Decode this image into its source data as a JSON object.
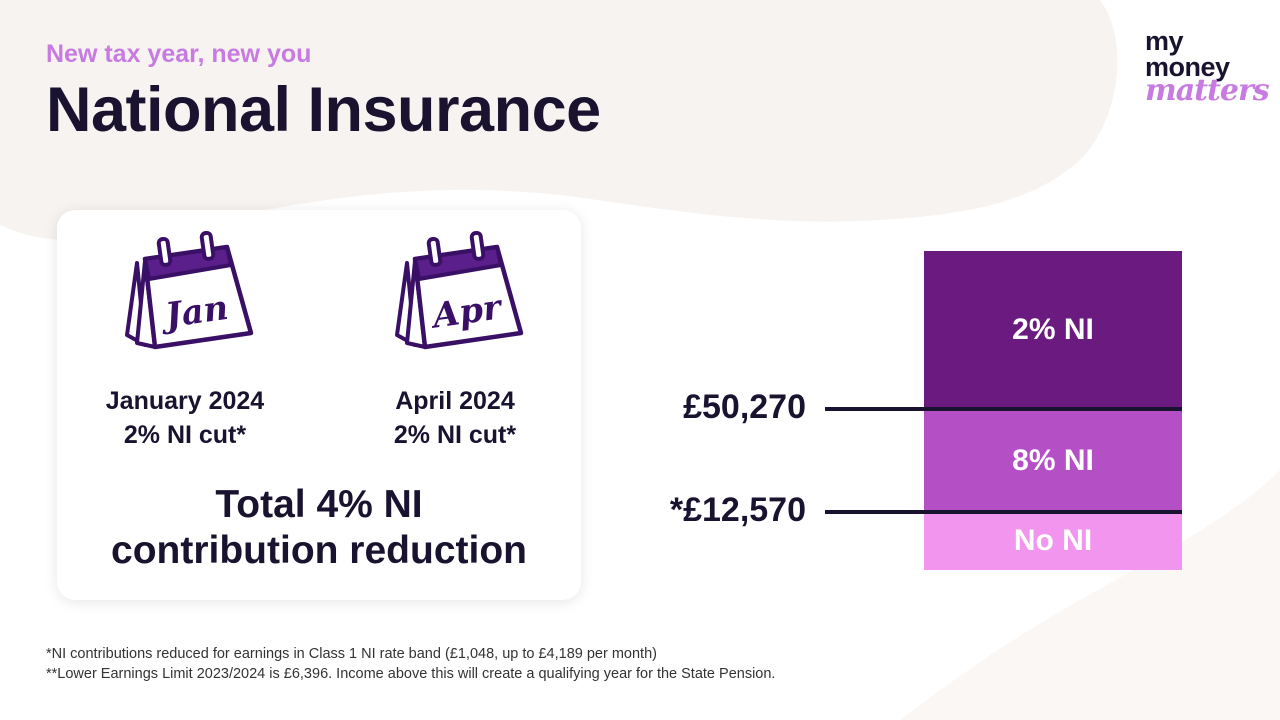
{
  "header": {
    "subtitle": "New tax year, new you",
    "title": "National Insurance"
  },
  "logo": {
    "line1": "my",
    "line2": "money",
    "line3": "matters"
  },
  "card": {
    "jan": {
      "calendar_text": "Jan",
      "caption_line1": "January 2024",
      "caption_line2": "2% NI cut*"
    },
    "apr": {
      "calendar_text": "Apr",
      "caption_line1": "April 2024",
      "caption_line2": "2% NI cut*"
    },
    "total_line1": "Total 4% NI",
    "total_line2": "contribution reduction"
  },
  "bands": {
    "top_label": "2% NI",
    "mid_label": "8% NI",
    "low_label": "No NI",
    "upper_threshold": "£50,270",
    "lower_threshold": "*£12,570"
  },
  "footnotes": {
    "note1": "*NI contributions reduced for earnings in Class 1 NI rate band (£1,048, up to £4,189 per month)",
    "note2": "**Lower Earnings Limit 2023/2024 is £6,396. Income above this will create a qualifying year for the State Pension."
  },
  "colors": {
    "accent": "#c77be0",
    "band_top": "#6b1a80",
    "band_mid": "#b44fc6",
    "band_low": "#f295ee",
    "text_dark": "#1a1330"
  }
}
